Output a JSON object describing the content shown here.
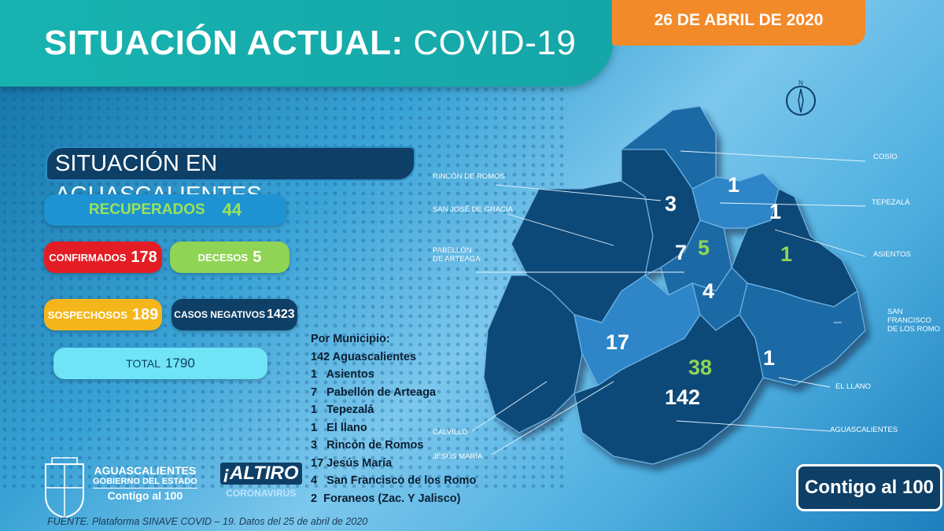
{
  "header": {
    "title_bold": "SITUACIÓN ACTUAL:",
    "title_light": "COVID-19",
    "date": "26 DE ABRIL DE 2020"
  },
  "subtitle": "SITUACIÓN EN AGUASCALIENTES",
  "stats": {
    "recuperados": {
      "label": "RECUPERADOS",
      "value": "44"
    },
    "confirmados": {
      "label": "CONFIRMADOS",
      "value": "178"
    },
    "decesos": {
      "label": "DECESOS",
      "value": "5"
    },
    "sospechosos": {
      "label": "SOSPECHOSOS",
      "value": "189"
    },
    "negativos": {
      "label": "CASOS NEGATIVOS",
      "value": "1423"
    },
    "total": {
      "label": "TOTAL",
      "value": "1790"
    }
  },
  "municipios": {
    "heading": "Por Municipio:",
    "items": [
      "142 Aguascalientes",
      "1   Asientos",
      "7   Pabellón de Arteaga",
      "1   Tepezalá",
      "1   El llano",
      "3   Rincón de Romos",
      "17 Jesús María",
      "4   San Francisco de los Romo",
      "2  Foraneos (Zac. Y Jalisco)"
    ]
  },
  "map": {
    "compass_letter": "N",
    "values": {
      "cosio": "1",
      "rincon": "3",
      "tepezala": "1",
      "pabellon": "7",
      "pabellon_green": "5",
      "asientos": "1",
      "sanfrancisco": "4",
      "jesusmaria": "17",
      "aguascalientes_green": "38",
      "elllano": "1",
      "aguascalientes": "142"
    },
    "labels": {
      "cosio": "COSÍO",
      "rincon": "RINCÓN DE ROMOS",
      "tepezala": "TEPEZALÁ",
      "sanjose": "SAN JOSÉ DE GRACIA",
      "asientos": "ASIENTOS",
      "pabellon1": "PABELLÓN",
      "pabellon2": "DE ARTEAGA",
      "sanfrancisco1": "SAN FRANCISCO",
      "sanfrancisco2": "DE LOS ROMO",
      "elllano": "EL LLANO",
      "aguascalientes": "AGUASCALIENTES",
      "calvillo": "CALVILLO",
      "jesusmaria": "JESÚS MARÍA"
    },
    "colors": {
      "region_dark": "#0e4a78",
      "region_mid": "#1f6aa5",
      "region_light": "#2f86c8",
      "green": "#8fd454"
    }
  },
  "logos": {
    "gov_line1": "AGUASCALIENTES",
    "gov_line2": "GOBIERNO DEL ESTADO",
    "gov_line3": "Contigo al 100",
    "altiro": "¡ALTIRO",
    "altiro_sub": "CORONAVIRUS",
    "contigo_badge": "Contigo al 100"
  },
  "fuente": "FUENTE. Plataforma SINAVE COVID – 19. Datos del 25 de abril de 2020"
}
